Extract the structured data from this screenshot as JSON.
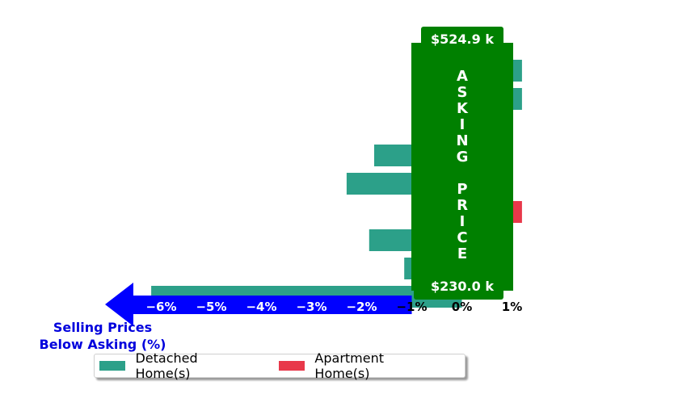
{
  "chart_data": {
    "type": "bar",
    "orientation": "horizontal",
    "xlim": [
      -7,
      1.2
    ],
    "x_ticks": [
      "−6%",
      "−5%",
      "−4%",
      "−3%",
      "−2%",
      "−1%",
      "0%",
      "1%"
    ],
    "x_tick_values": [
      -6,
      -5,
      -4,
      -3,
      -2,
      -1,
      0,
      1
    ],
    "axis_title_lines": [
      "Selling Prices",
      "Below Asking (%)"
    ],
    "series": [
      {
        "name": "Detached Home(s)",
        "color": "#2ca089",
        "values": [
          1.2,
          1.2,
          null,
          -1.75,
          -2.3,
          null,
          -1.85,
          -1.15,
          -6.2
        ]
      },
      {
        "name": "Apartment Home(s)",
        "color": "#e8384a",
        "values": [
          null,
          null,
          null,
          null,
          null,
          1.2,
          null,
          null,
          null
        ]
      }
    ],
    "asking_price": {
      "label_letters": [
        "A",
        "S",
        "K",
        "I",
        "N",
        "G",
        "",
        "P",
        "R",
        "I",
        "C",
        "E"
      ],
      "top_price": "$524.9 k",
      "bottom_price": "$230.0 k",
      "color": "#008000"
    },
    "arrow_color": "#0000ff",
    "axis_title_color": "#0000dd",
    "legend_position": "bottom"
  }
}
